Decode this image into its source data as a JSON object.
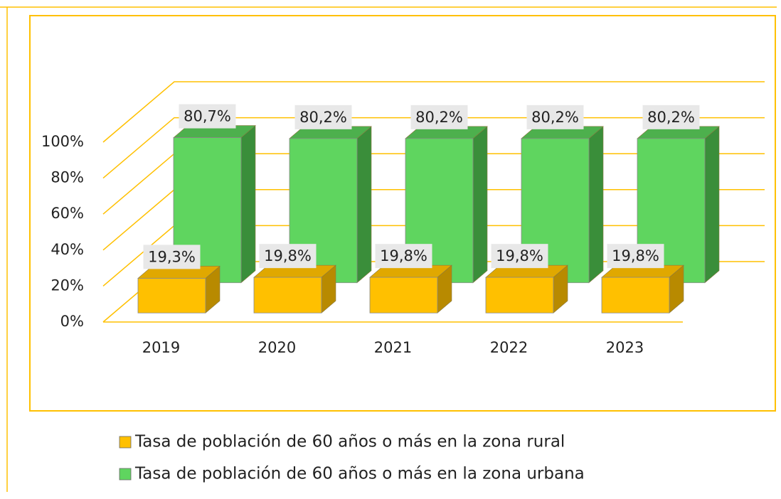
{
  "chart_data": {
    "type": "bar3d",
    "categories": [
      "2019",
      "2020",
      "2021",
      "2022",
      "2023"
    ],
    "series": [
      {
        "name": "Tasa de población de 60 años o más en la zona rural",
        "color": "#FFC000",
        "side_color": "#B88A00",
        "top_color": "#E0A800",
        "values": [
          19.3,
          19.8,
          19.8,
          19.8,
          19.8
        ],
        "value_labels": [
          "19,3%",
          "19,8%",
          "19,8%",
          "19,8%",
          "19,8%"
        ]
      },
      {
        "name": "Tasa de población de 60 años o más en la zona urbana",
        "color": "#5FD55F",
        "side_color": "#3A8E3A",
        "top_color": "#4DB04D",
        "values": [
          80.7,
          80.2,
          80.2,
          80.2,
          80.2
        ],
        "value_labels": [
          "80,7%",
          "80,2%",
          "80,2%",
          "80,2%",
          "80,2%"
        ]
      }
    ],
    "ylim": [
      0,
      100
    ],
    "yticks": [
      {
        "value": 0,
        "label": "0%"
      },
      {
        "value": 20,
        "label": "20%"
      },
      {
        "value": 40,
        "label": "40%"
      },
      {
        "value": 60,
        "label": "60%"
      },
      {
        "value": 80,
        "label": "80%"
      },
      {
        "value": 100,
        "label": "100%"
      }
    ],
    "grid": true,
    "grid_color": "#FFC000"
  }
}
